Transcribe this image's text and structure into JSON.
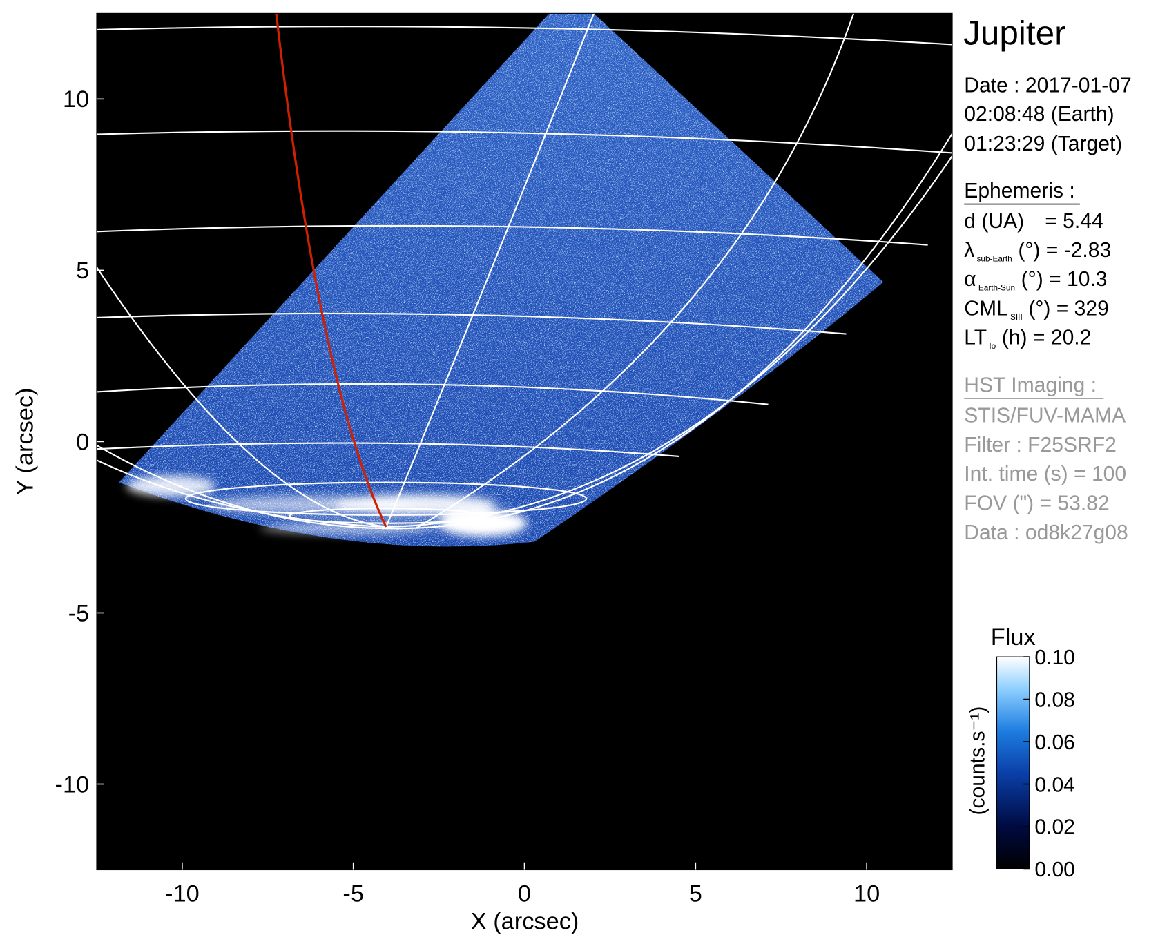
{
  "chart_data": {
    "type": "image",
    "xlabel": "X (arcsec)",
    "ylabel": "Y (arcsec)",
    "xlim": [
      -12.5,
      12.5
    ],
    "ylim": [
      -12.5,
      12.5
    ],
    "xticks": [
      -10,
      -5,
      0,
      5,
      10
    ],
    "yticks": [
      -10,
      -5,
      0,
      5,
      10
    ],
    "colorbar": {
      "title": "Flux",
      "label": "(counts.s⁻¹)",
      "clim": [
        0,
        0.1
      ],
      "ticks": [
        {
          "value": 0,
          "label": "0.00"
        },
        {
          "value": 0.02,
          "label": "0.02"
        },
        {
          "value": 0.04,
          "label": "0.04"
        },
        {
          "value": 0.06,
          "label": "0.06"
        },
        {
          "value": 0.08,
          "label": "0.08"
        },
        {
          "value": 0.1,
          "label": "0.10"
        }
      ]
    }
  },
  "info_panel": {
    "title": "Jupiter",
    "date": [
      "Date : 2017-01-07",
      "02:08:48 (Earth)",
      "01:23:29 (Target)"
    ],
    "ephemeris": {
      "heading": "Ephemeris :",
      "items": [
        {
          "name": "d (UA)",
          "rest": "= 5.44"
        },
        {
          "name": "λ",
          "sub": "sub-Earth",
          "rest": "(°) = -2.83"
        },
        {
          "name": "α",
          "sub": "Earth-Sun",
          "rest": "(°) = 10.3"
        },
        {
          "name": "CML",
          "sub": "SIII",
          "rest": "(°) = 329"
        },
        {
          "name": "LT",
          "sub": "Io",
          "rest": "(h) = 20.2"
        }
      ]
    },
    "imaging": {
      "heading": "HST Imaging :",
      "lines": [
        "STIS/FUV-MAMA",
        "Filter : F25SRF2",
        "Int. time (s) = 100",
        "FOV (\") = 53.82",
        "Data : od8k27g08"
      ]
    }
  }
}
